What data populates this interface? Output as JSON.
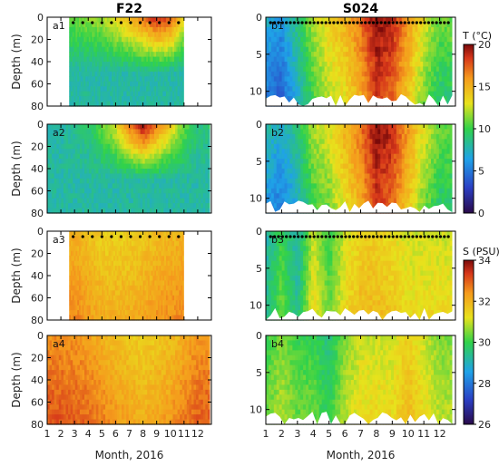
{
  "chart_data": {
    "type": "heatmap",
    "columns": [
      {
        "title": "F22",
        "xlabel": "Month, 2016",
        "ylabel": "Depth (m)",
        "ylim": [
          0,
          80
        ],
        "yticks": [
          0,
          20,
          40,
          60,
          80
        ]
      },
      {
        "title": "S024",
        "xlabel": "Month, 2016",
        "ylabel": "",
        "ylim": [
          0,
          12
        ],
        "yticks": [
          0,
          5,
          10
        ]
      }
    ],
    "xticks": [
      "1",
      "2",
      "3",
      "4",
      "5",
      "6",
      "7",
      "8",
      "9",
      "10",
      "11",
      "12"
    ],
    "panels": [
      {
        "label": "a1",
        "variable": "T",
        "x_range": [
          2.6,
          11.0
        ],
        "surface_temp_by_month": [
          [
            3,
            11
          ],
          [
            5,
            12
          ],
          [
            7,
            15
          ],
          [
            8,
            17
          ],
          [
            9,
            19
          ],
          [
            10,
            18
          ],
          [
            11,
            13
          ]
        ]
      },
      {
        "label": "a2",
        "variable": "T",
        "x_range": [
          1.0,
          12.9
        ],
        "surface_temp_by_month": [
          [
            2,
            8
          ],
          [
            4,
            9
          ],
          [
            6,
            13
          ],
          [
            7,
            17
          ],
          [
            8,
            20
          ],
          [
            9,
            17
          ],
          [
            10,
            14
          ],
          [
            11,
            11
          ],
          [
            12,
            9
          ]
        ]
      },
      {
        "label": "a3",
        "variable": "S",
        "x_range": [
          2.6,
          11.0
        ],
        "salinity_by_month": [
          [
            3,
            32
          ],
          [
            5,
            31.5
          ],
          [
            7,
            31.5
          ],
          [
            9,
            31.8
          ],
          [
            11,
            32
          ]
        ]
      },
      {
        "label": "a4",
        "variable": "S",
        "x_range": [
          1.0,
          12.9
        ],
        "salinity_by_month": [
          [
            2,
            32.5
          ],
          [
            4,
            32.3
          ],
          [
            6,
            31.8
          ],
          [
            8,
            31.5
          ],
          [
            10,
            31.8
          ],
          [
            12,
            32.4
          ]
        ]
      },
      {
        "label": "b1",
        "variable": "T",
        "x_range": [
          1.0,
          12.8
        ],
        "surface_temp_by_month": [
          [
            1,
            7
          ],
          [
            2,
            6
          ],
          [
            3,
            9
          ],
          [
            4,
            12
          ],
          [
            5,
            14
          ],
          [
            6,
            15
          ],
          [
            7,
            17
          ],
          [
            8,
            20
          ],
          [
            9,
            19
          ],
          [
            10,
            16
          ],
          [
            11,
            13
          ],
          [
            12,
            11
          ]
        ]
      },
      {
        "label": "b2",
        "variable": "T",
        "x_range": [
          1.0,
          12.8
        ],
        "surface_temp_by_month": [
          [
            1,
            8
          ],
          [
            2,
            7
          ],
          [
            3,
            9
          ],
          [
            4,
            12
          ],
          [
            5,
            13
          ],
          [
            6,
            15
          ],
          [
            7,
            17
          ],
          [
            8,
            20
          ],
          [
            9,
            19
          ],
          [
            10,
            16
          ],
          [
            11,
            13
          ],
          [
            12,
            11
          ]
        ]
      },
      {
        "label": "b3",
        "variable": "S",
        "x_range": [
          1.0,
          12.8
        ],
        "salinity_by_month": [
          [
            1,
            29
          ],
          [
            2,
            30
          ],
          [
            3,
            29
          ],
          [
            4,
            31
          ],
          [
            5,
            30
          ],
          [
            6,
            31
          ],
          [
            7,
            31.5
          ],
          [
            8,
            31.5
          ],
          [
            9,
            31.3
          ],
          [
            10,
            31
          ],
          [
            11,
            31
          ],
          [
            12,
            31
          ]
        ]
      },
      {
        "label": "b4",
        "variable": "S",
        "x_range": [
          1.0,
          12.8
        ],
        "salinity_by_month": [
          [
            1,
            30
          ],
          [
            2,
            30.5
          ],
          [
            3,
            30
          ],
          [
            4,
            30
          ],
          [
            5,
            29.5
          ],
          [
            6,
            30.5
          ],
          [
            7,
            31
          ],
          [
            8,
            31
          ],
          [
            9,
            31
          ],
          [
            10,
            31.5
          ],
          [
            11,
            31
          ],
          [
            12,
            30.5
          ]
        ]
      }
    ],
    "colorbars": [
      {
        "title": "T (°C)",
        "range": [
          0,
          20
        ],
        "ticks": [
          0,
          5,
          10,
          15,
          20
        ]
      },
      {
        "title": "S (PSU)",
        "range": [
          26,
          34
        ],
        "ticks": [
          26,
          28,
          30,
          32,
          34
        ]
      }
    ]
  }
}
